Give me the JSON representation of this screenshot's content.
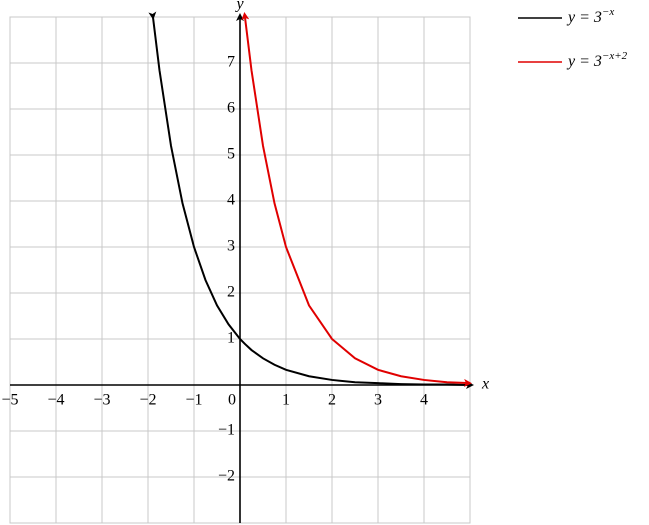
{
  "chart_data": {
    "type": "line",
    "x_label": "x",
    "y_label": "y",
    "x": [
      -1.89,
      -1.75,
      -1.5,
      -1.25,
      -1,
      -0.75,
      -0.5,
      -0.25,
      0,
      0.11,
      0.25,
      0.5,
      0.75,
      1,
      1.5,
      2,
      2.5,
      3,
      3.5,
      4,
      4.5,
      5
    ],
    "series": [
      {
        "name": "y = 3−x",
        "color": "#000000",
        "values": [
          7.98,
          6.84,
          5.2,
          3.95,
          3,
          2.28,
          1.73,
          1.32,
          1,
          0.89,
          0.76,
          0.58,
          0.44,
          0.33,
          0.19,
          0.11,
          0.06,
          0.04,
          0.02,
          0.01,
          0.01,
          0.0
        ]
      },
      {
        "name": "y = 3−x+2",
        "color": "#e00000",
        "values": [
          null,
          null,
          null,
          null,
          null,
          null,
          null,
          null,
          null,
          7.98,
          6.84,
          5.2,
          3.95,
          3,
          1.73,
          1,
          0.58,
          0.33,
          0.19,
          0.11,
          0.06,
          0.04
        ]
      }
    ],
    "xlim": [
      -5,
      5
    ],
    "ylim": [
      -3,
      8
    ],
    "xticks": [
      {
        "value": -5,
        "label": "−5"
      },
      {
        "value": -4,
        "label": "−4"
      },
      {
        "value": -3,
        "label": "−3"
      },
      {
        "value": -2,
        "label": "−2"
      },
      {
        "value": -1,
        "label": "−1"
      },
      0,
      1,
      2,
      3,
      4
    ],
    "yticks": [
      {
        "value": -2,
        "label": "−2"
      },
      {
        "value": -1,
        "label": "−1"
      },
      1,
      2,
      3,
      4,
      5,
      6,
      7
    ],
    "grid": true
  }
}
